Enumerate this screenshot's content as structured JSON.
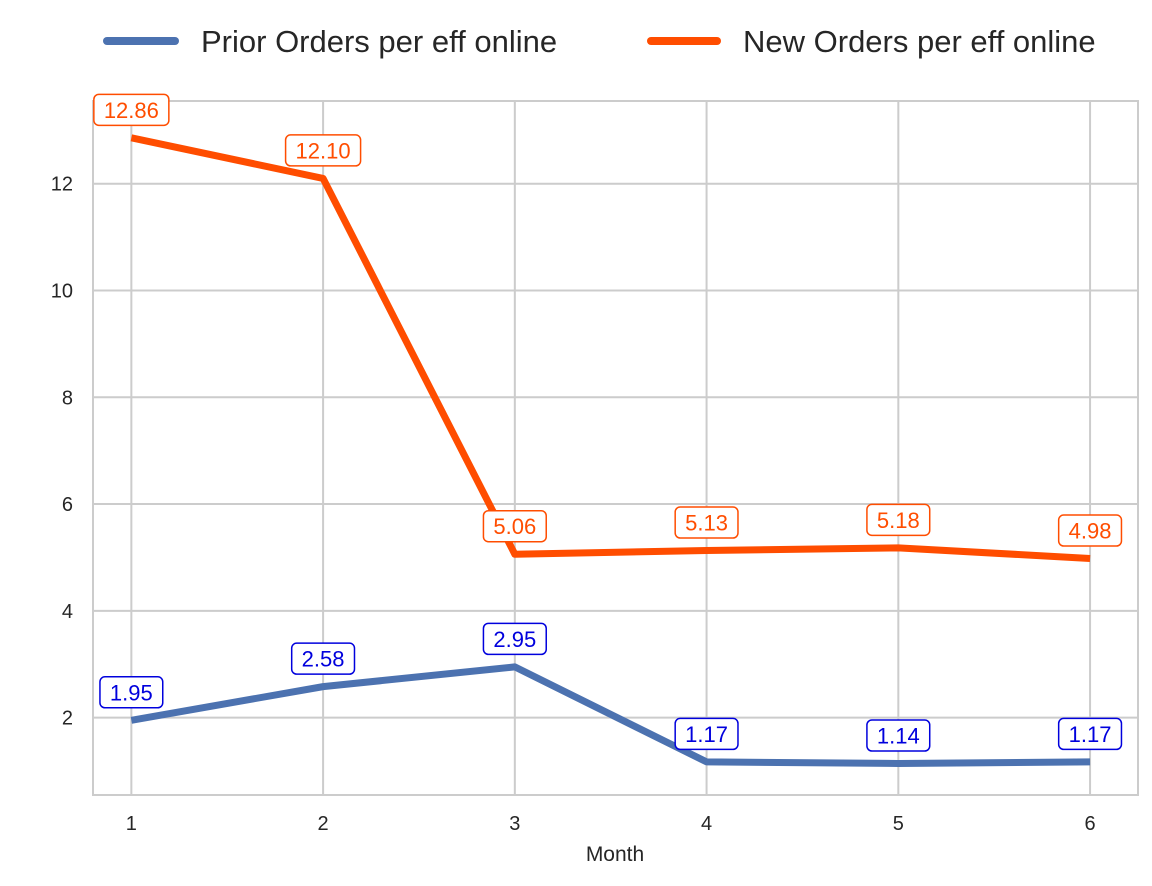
{
  "chart_data": {
    "type": "line",
    "title": "",
    "xlabel": "Month",
    "ylabel": "",
    "x": [
      1,
      2,
      3,
      4,
      5,
      6
    ],
    "x_ticks": [
      "1",
      "2",
      "3",
      "4",
      "5",
      "6"
    ],
    "y_ticks": [
      "2",
      "4",
      "6",
      "8",
      "10",
      "12"
    ],
    "xlim": [
      0.8,
      6.25
    ],
    "ylim": [
      0.55,
      13.55
    ],
    "grid": true,
    "legend_position": "top",
    "series": [
      {
        "name": "Prior Orders per eff online",
        "color": "#4c72b0",
        "label_color": "#0000dd",
        "values": [
          1.95,
          2.58,
          2.95,
          1.17,
          1.14,
          1.17
        ],
        "labels": [
          "1.95",
          "2.58",
          "2.95",
          "1.17",
          "1.14",
          "1.17"
        ]
      },
      {
        "name": "New Orders per eff online",
        "color": "#ff4d00",
        "label_color": "#ff4d00",
        "values": [
          12.86,
          12.1,
          5.06,
          5.13,
          5.18,
          4.98
        ],
        "labels": [
          "12.86",
          "12.10",
          "5.06",
          "5.13",
          "5.18",
          "4.98"
        ]
      }
    ]
  }
}
